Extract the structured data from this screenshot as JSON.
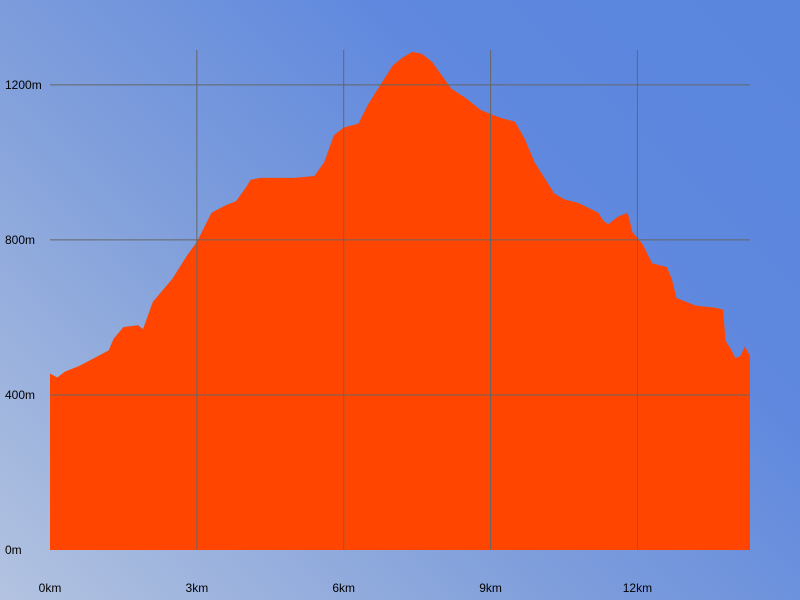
{
  "chart_data": {
    "type": "area",
    "title": "",
    "xlabel": "",
    "ylabel": "",
    "x_unit": "km",
    "y_unit": "m",
    "xlim": [
      0,
      14.3
    ],
    "ylim": [
      0,
      1290
    ],
    "grid": true,
    "legend": "none",
    "colors": {
      "fill": "#ff4500",
      "grid": "#666666"
    },
    "x_ticks": [
      {
        "value": 0,
        "label": "0km"
      },
      {
        "value": 3,
        "label": "3km"
      },
      {
        "value": 6,
        "label": "6km"
      },
      {
        "value": 9,
        "label": "9km"
      },
      {
        "value": 12,
        "label": "12km"
      }
    ],
    "y_ticks": [
      {
        "value": 0,
        "label": "0m"
      },
      {
        "value": 400,
        "label": "400m"
      },
      {
        "value": 800,
        "label": "800m"
      },
      {
        "value": 1200,
        "label": "1200m"
      }
    ],
    "series": [
      {
        "x": [
          0,
          0.15,
          0.3,
          0.6,
          0.9,
          1.2,
          1.3,
          1.5,
          1.8,
          1.9,
          2.1,
          2.5,
          2.8,
          3.0,
          3.3,
          3.6,
          3.8,
          4.0,
          4.1,
          4.3,
          5.0,
          5.4,
          5.6,
          5.8,
          6.0,
          6.3,
          6.5,
          6.8,
          7.0,
          7.2,
          7.4,
          7.6,
          7.8,
          8.0,
          8.2,
          8.5,
          8.8,
          9.0,
          9.2,
          9.5,
          9.7,
          9.9,
          10.1,
          10.3,
          10.5,
          10.8,
          11.2,
          11.3,
          11.4,
          11.6,
          11.8,
          11.9,
          12.1,
          12.3,
          12.6,
          12.7,
          12.8,
          13.2,
          13.6,
          13.75,
          13.8,
          13.9,
          14.0,
          14.1,
          14.2,
          14.3
        ],
        "y": [
          455,
          445,
          460,
          475,
          495,
          515,
          545,
          575,
          580,
          570,
          640,
          700,
          760,
          795,
          870,
          890,
          900,
          935,
          955,
          960,
          960,
          965,
          1000,
          1070,
          1090,
          1100,
          1150,
          1210,
          1250,
          1270,
          1285,
          1280,
          1260,
          1225,
          1190,
          1165,
          1135,
          1125,
          1115,
          1105,
          1060,
          1000,
          960,
          920,
          905,
          895,
          870,
          850,
          840,
          860,
          870,
          820,
          790,
          740,
          730,
          700,
          650,
          630,
          625,
          620,
          540,
          520,
          495,
          500,
          525,
          500
        ]
      }
    ]
  }
}
